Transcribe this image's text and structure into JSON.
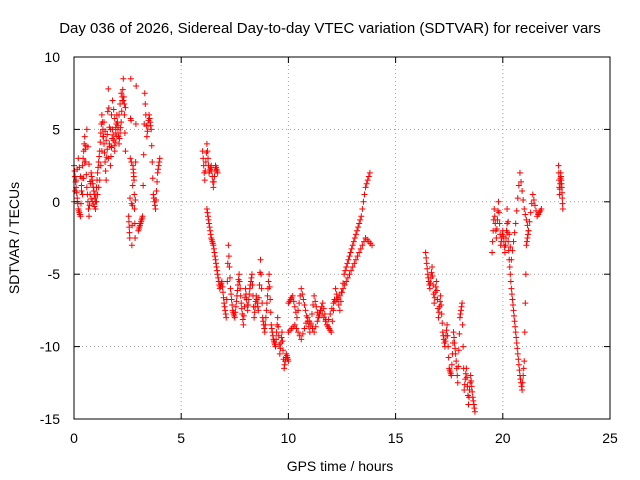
{
  "chart_data": {
    "type": "scatter",
    "title": "Day 036 of 2026, Sidereal Day-to-day VTEC variation (SDTVAR) for receiver vars",
    "xlabel": "GPS time / hours",
    "ylabel": "SDTVAR / TECUs",
    "xlim": [
      0,
      25
    ],
    "ylim": [
      -15,
      10
    ],
    "x_ticks": [
      0,
      5,
      10,
      15,
      20,
      25
    ],
    "y_ticks": [
      -15,
      -10,
      -5,
      0,
      5,
      10
    ],
    "x_tick_labels": [
      "0",
      "5",
      "10",
      "15",
      "20",
      "25"
    ],
    "y_tick_labels": [
      "-15",
      "-10",
      "-5",
      "0",
      "5",
      "10"
    ],
    "grid": true,
    "marker": "+",
    "color": "#ff0000",
    "series": [
      {
        "name": "SDTVAR",
        "segments": [
          {
            "x": [
              0.0,
              0.1,
              0.2,
              0.3,
              0.4,
              0.5,
              0.6,
              0.7,
              0.8,
              0.9,
              1.0,
              1.1,
              1.2,
              1.3,
              1.4,
              1.5,
              1.6,
              1.7,
              1.8,
              1.9,
              2.0,
              2.1,
              2.2,
              2.3,
              2.4
            ],
            "y": [
              2.5,
              1.0,
              -0.5,
              -1.0,
              2.5,
              4.5,
              1.0,
              -1.0,
              2.0,
              1.0,
              0.0,
              2.0,
              3.5,
              6.0,
              4.0,
              1.5,
              7.8,
              2.5,
              5.0,
              3.5,
              6.0,
              4.0,
              5.5,
              8.5,
              3.5
            ]
          },
          {
            "x": [
              0.0,
              0.2,
              0.4,
              0.6,
              0.8,
              1.0,
              1.2,
              1.4,
              1.6,
              1.8,
              2.0,
              2.2,
              2.4
            ],
            "y": [
              0.0,
              3.0,
              0.5,
              5.0,
              0.2,
              -0.5,
              1.5,
              5.5,
              3.0,
              7.0,
              4.5,
              7.5,
              6.5
            ]
          },
          {
            "x": [
              2.55,
              2.6,
              2.65,
              2.7,
              2.75,
              2.8,
              2.85,
              2.9
            ],
            "y": [
              -1.0,
              -2.5,
              8.5,
              -3.0,
              2.5,
              1.5,
              -2.5,
              8.0
            ]
          },
          {
            "x": [
              3.0,
              3.1,
              3.2,
              3.3,
              3.4,
              3.5,
              3.6,
              3.7,
              3.8,
              3.9,
              4.0
            ],
            "y": [
              -2.0,
              -1.5,
              -1.0,
              7.5,
              4.5,
              6.0,
              5.0,
              0.5,
              -0.5,
              2.0,
              3.0
            ]
          },
          {
            "x": [
              6.0,
              6.1,
              6.2,
              6.3,
              6.4,
              6.5,
              6.6,
              6.7
            ],
            "y": [
              3.5,
              1.5,
              4.0,
              2.0,
              2.5,
              1.0,
              2.5,
              2.0
            ]
          },
          {
            "x": [
              6.2,
              6.3,
              6.4,
              6.5,
              6.6,
              6.7,
              6.8,
              6.9,
              7.0,
              7.1,
              7.2,
              7.3,
              7.4,
              7.5,
              7.6,
              7.7,
              7.8,
              7.9,
              8.0,
              8.1,
              8.2,
              8.3,
              8.4,
              8.5,
              8.6,
              8.7,
              8.8,
              8.9,
              9.0,
              9.1,
              9.2,
              9.3,
              9.4,
              9.5,
              9.6,
              9.7,
              9.8,
              9.9,
              10.0
            ],
            "y": [
              -0.5,
              -1.5,
              -2.5,
              -3.0,
              -4.0,
              -5.0,
              -6.0,
              -5.5,
              -7.0,
              -8.0,
              -3.0,
              -6.0,
              -7.5,
              -8.0,
              -6.5,
              -5.0,
              -7.0,
              -8.5,
              -6.0,
              -7.5,
              -6.0,
              -5.0,
              -8.0,
              -6.5,
              -7.5,
              -4.0,
              -8.0,
              -9.0,
              -7.0,
              -5.0,
              -8.5,
              -9.5,
              -10.0,
              -8.0,
              -10.5,
              -9.0,
              -11.5,
              -10.5,
              -11.0
            ]
          },
          {
            "x": [
              10.0,
              10.2,
              10.4,
              10.6,
              10.8,
              11.0,
              11.2,
              11.4,
              11.6,
              11.8,
              12.0,
              12.2,
              12.4,
              12.6,
              12.8,
              13.0,
              13.2,
              13.4,
              13.6,
              13.8
            ],
            "y": [
              -7.0,
              -6.5,
              -8.0,
              -6.0,
              -7.5,
              -9.0,
              -6.5,
              -8.0,
              -7.0,
              -8.5,
              -9.0,
              -6.0,
              -7.5,
              -5.0,
              -4.0,
              -3.0,
              -2.0,
              -1.0,
              1.0,
              2.0
            ]
          },
          {
            "x": [
              10.0,
              10.3,
              10.6,
              10.9,
              11.2,
              11.5,
              11.8,
              12.1,
              12.4,
              12.7,
              13.0,
              13.3,
              13.6,
              13.9
            ],
            "y": [
              -9.0,
              -8.5,
              -9.5,
              -8.0,
              -9.0,
              -7.5,
              -8.5,
              -7.0,
              -6.5,
              -5.5,
              -4.5,
              -3.5,
              -2.5,
              -3.0
            ]
          },
          {
            "x": [
              16.4,
              16.5,
              16.6,
              16.7,
              16.8,
              16.9,
              17.0,
              17.1,
              17.2,
              17.3,
              17.4,
              17.5,
              17.6,
              17.7,
              17.8,
              17.9,
              18.0,
              18.1,
              18.2,
              18.3,
              18.4,
              18.5,
              18.6,
              18.7
            ],
            "y": [
              -3.5,
              -5.0,
              -6.0,
              -4.5,
              -7.0,
              -5.5,
              -8.0,
              -6.5,
              -9.0,
              -10.0,
              -8.5,
              -11.5,
              -12.0,
              -9.0,
              -10.5,
              -12.5,
              -8.0,
              -7.0,
              -13.0,
              -11.5,
              -14.0,
              -12.0,
              -13.5,
              -14.5
            ]
          },
          {
            "x": [
              19.5,
              19.6,
              19.7,
              19.8,
              19.9,
              20.0,
              20.1,
              20.2,
              20.3,
              20.4,
              20.5,
              20.6,
              20.7,
              20.8,
              20.9,
              21.0,
              21.1,
              21.2
            ],
            "y": [
              -3.5,
              -0.5,
              -2.5,
              0.0,
              -3.0,
              -2.0,
              -3.5,
              -1.5,
              -4.0,
              -6.0,
              -7.5,
              -9.0,
              -10.5,
              -12.0,
              -13.0,
              -11.0,
              -3.0,
              -2.0
            ]
          },
          {
            "x": [
              20.2,
              20.4,
              20.6,
              20.8,
              21.0,
              21.2,
              21.4,
              21.6,
              21.8
            ],
            "y": [
              -0.5,
              -4.0,
              -1.5,
              2.0,
              -0.5,
              -2.0,
              0.5,
              -1.0,
              -0.5
            ]
          },
          {
            "x": [
              22.6,
              22.65,
              22.7,
              22.75,
              22.8
            ],
            "y": [
              2.5,
              0.5,
              2.0,
              1.0,
              -0.5
            ]
          }
        ]
      }
    ]
  }
}
